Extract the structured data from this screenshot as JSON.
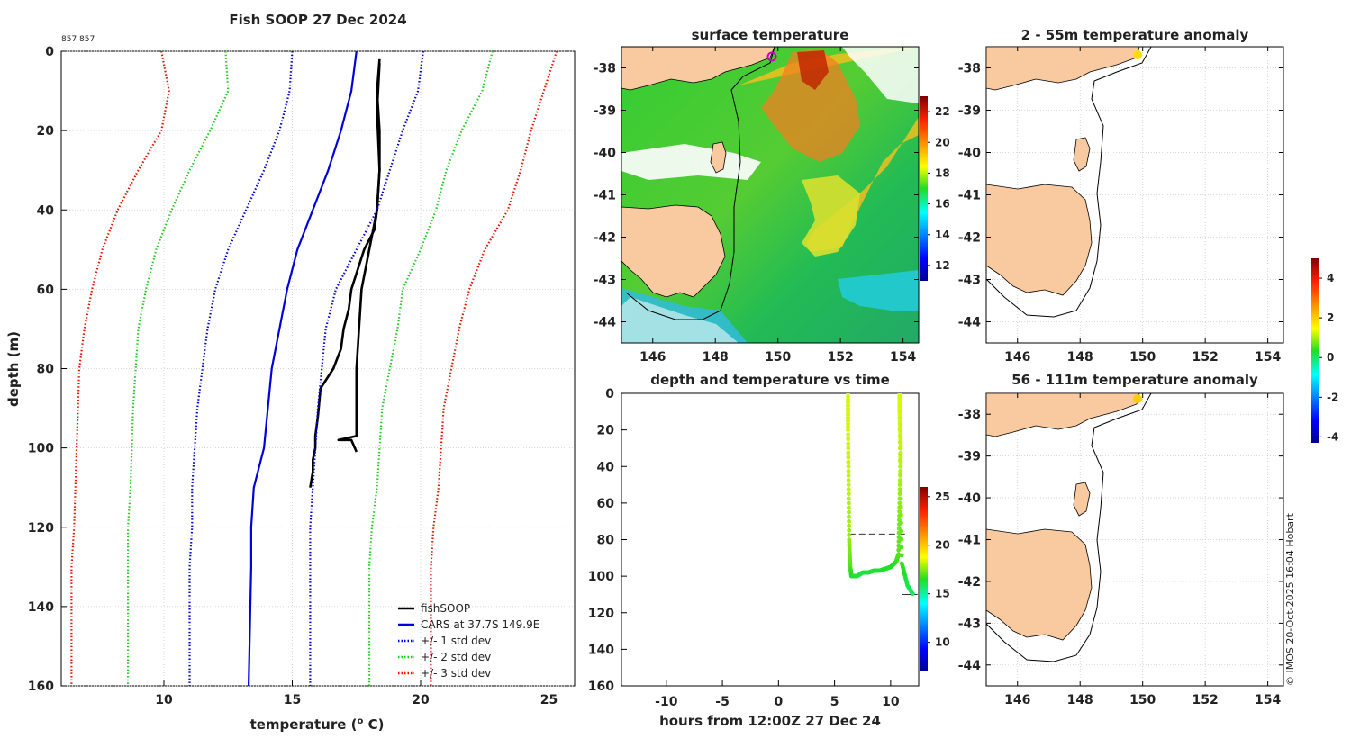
{
  "figure": {
    "main_title": "Fish SOOP 27 Dec 2024",
    "id_label": "857 857",
    "credit": "© IMOS 20-Oct-2025 16:04 Hobart"
  },
  "colors": {
    "fishsoop": "#000000",
    "cars": "#0000dd",
    "std1": "#0000dd",
    "std2": "#22cc22",
    "std3": "#ee1100",
    "land": "#f9c9a0",
    "grid": "#cccccc"
  },
  "chart_data": [
    {
      "id": "profile",
      "type": "line",
      "title": "Fish SOOP 27 Dec 2024",
      "xlabel": "temperature (",
      "xlabel_sup": "o",
      "xlabel_end": " C)",
      "ylabel": "depth (m)",
      "xlim": [
        6,
        26
      ],
      "ylim": [
        0,
        160
      ],
      "y_reversed": true,
      "xticks": [
        10,
        15,
        20,
        25
      ],
      "yticks": [
        0,
        20,
        40,
        60,
        80,
        100,
        120,
        140,
        160
      ],
      "legend_position": "bottom-right",
      "series": [
        {
          "name": "fishSOOP",
          "style": "solid",
          "color_key": "fishsoop",
          "x": [
            18.4,
            18.3,
            18.4,
            18.4,
            18.3,
            18.2,
            17.8,
            17.3,
            17.2,
            17.0,
            16.9,
            16.6,
            16.1,
            16.0,
            15.9,
            15.9,
            15.8,
            15.8,
            15.7
          ],
          "y": [
            2,
            10,
            20,
            30,
            40,
            45,
            50,
            60,
            65,
            70,
            75,
            80,
            85,
            92,
            97,
            100,
            103,
            106,
            110
          ]
        },
        {
          "name": "fishSOOP_up",
          "style": "solid",
          "color_key": "fishsoop",
          "hidden_label": true,
          "x": [
            17.5,
            17.3,
            16.8,
            17.5,
            17.5,
            17.5,
            17.6,
            17.7,
            18.0,
            18.3,
            18.4,
            18.3,
            18.4
          ],
          "y": [
            101,
            98,
            98,
            97,
            90,
            80,
            70,
            60,
            50,
            40,
            30,
            15,
            3
          ]
        },
        {
          "name": "CARS at 37.7S 149.9E",
          "style": "solid",
          "color_key": "cars",
          "x": [
            17.5,
            17.3,
            16.9,
            16.4,
            15.8,
            15.2,
            14.8,
            14.2,
            13.9,
            13.5,
            13.4,
            13.4,
            13.3
          ],
          "y": [
            0,
            10,
            20,
            30,
            40,
            50,
            60,
            80,
            100,
            110,
            120,
            130,
            160
          ]
        },
        {
          "name": "+/- 1 std dev",
          "style": "dotted",
          "color_key": "std1",
          "x": [
            15.0,
            14.9,
            14.5,
            13.9,
            13.2,
            12.5,
            12.0,
            11.7,
            11.3,
            11.1,
            11.1,
            11.0,
            11.0,
            11.0
          ],
          "y": [
            0,
            10,
            20,
            30,
            40,
            50,
            60,
            70,
            90,
            110,
            120,
            130,
            140,
            160
          ]
        },
        {
          "name": "+/- 1 std dev upper",
          "style": "dotted",
          "color_key": "std1",
          "hidden_label": true,
          "x": [
            20.1,
            19.9,
            19.3,
            18.8,
            18.3,
            17.5,
            16.7,
            16.3,
            16.0,
            15.8,
            15.7,
            15.7,
            15.7
          ],
          "y": [
            0,
            10,
            20,
            30,
            40,
            50,
            60,
            70,
            90,
            110,
            120,
            130,
            160
          ]
        },
        {
          "name": "+/- 2 std dev",
          "style": "dotted",
          "color_key": "std2",
          "x": [
            12.4,
            12.5,
            11.8,
            11.0,
            10.3,
            9.7,
            9.3,
            9.0,
            8.8,
            8.7,
            8.6,
            8.6,
            8.6
          ],
          "y": [
            0,
            10,
            20,
            30,
            40,
            50,
            60,
            70,
            90,
            110,
            120,
            130,
            160
          ]
        },
        {
          "name": "+/- 2 std dev upper",
          "style": "dotted",
          "color_key": "std2",
          "hidden_label": true,
          "x": [
            22.8,
            22.4,
            21.6,
            21.0,
            20.6,
            20.0,
            19.3,
            19.1,
            18.8,
            18.5,
            18.3,
            18.1,
            18.0,
            18.0
          ],
          "y": [
            0,
            10,
            20,
            30,
            40,
            50,
            60,
            70,
            80,
            90,
            110,
            120,
            130,
            160
          ]
        },
        {
          "name": "+/- 3 std dev",
          "style": "dotted",
          "color_key": "std3",
          "x": [
            9.9,
            10.2,
            9.9,
            9.0,
            8.2,
            7.6,
            7.2,
            6.9,
            6.7,
            6.6,
            6.5,
            6.4,
            6.4
          ],
          "y": [
            0,
            10,
            20,
            30,
            40,
            50,
            60,
            70,
            80,
            100,
            120,
            130,
            160
          ]
        },
        {
          "name": "+/- 3 std dev upper",
          "style": "dotted",
          "color_key": "std3",
          "hidden_label": true,
          "x": [
            25.3,
            24.8,
            24.3,
            23.9,
            23.4,
            22.5,
            21.9,
            21.5,
            21.2,
            20.9,
            20.7,
            20.5,
            20.4,
            20.4
          ],
          "y": [
            0,
            10,
            20,
            30,
            40,
            50,
            60,
            70,
            80,
            90,
            110,
            120,
            130,
            160
          ]
        }
      ],
      "legend": [
        {
          "label": "fishSOOP",
          "color_key": "fishsoop",
          "style": "solid"
        },
        {
          "label": "CARS at 37.7S 149.9E",
          "color_key": "cars",
          "style": "solid"
        },
        {
          "label": "+/- 1 std dev",
          "color_key": "std1",
          "style": "dotted"
        },
        {
          "label": "+/- 2 std dev",
          "color_key": "std2",
          "style": "dotted"
        },
        {
          "label": "+/- 3 std dev",
          "color_key": "std3",
          "style": "dotted"
        }
      ]
    },
    {
      "id": "sst_map",
      "type": "heatmap",
      "title": "surface temperature",
      "xlim": [
        145,
        154.5
      ],
      "ylim": [
        -44.5,
        -37.5
      ],
      "xticks": [
        146,
        148,
        150,
        152,
        154
      ],
      "yticks": [
        -38,
        -39,
        -40,
        -41,
        -42,
        -43,
        -44
      ],
      "colorbar": {
        "min": 11,
        "max": 23,
        "ticks": [
          12,
          14,
          16,
          18,
          20,
          22
        ]
      },
      "marker": {
        "lon": 149.9,
        "lat": -37.7,
        "color": "#cc00cc"
      }
    },
    {
      "id": "depth_time",
      "type": "scatter",
      "title": "depth and temperature vs time",
      "xlabel": "hours from 12:00Z 27 Dec 24",
      "xlim": [
        -14,
        12.5
      ],
      "ylim": [
        0,
        160
      ],
      "y_reversed": true,
      "xticks": [
        -10,
        -5,
        0,
        5,
        10
      ],
      "yticks": [
        0,
        20,
        40,
        60,
        80,
        100,
        120,
        140,
        160
      ],
      "colorbar": {
        "min": 7,
        "max": 26,
        "ticks": [
          10,
          15,
          20,
          25
        ]
      },
      "trace": {
        "hours": [
          6.2,
          6.2,
          6.25,
          6.3,
          6.4,
          6.5,
          7.0,
          7.5,
          8.0,
          8.5,
          9.0,
          9.5,
          10.0,
          10.5,
          10.7,
          10.8,
          10.9,
          10.8,
          10.8,
          10.85,
          11.0,
          11.5,
          12.0
        ],
        "depth": [
          0,
          20,
          50,
          80,
          95,
          100,
          100,
          98,
          98,
          97,
          97,
          96,
          95,
          92,
          88,
          60,
          30,
          10,
          0,
          40,
          93,
          105,
          110
        ],
        "temp": [
          18.3,
          18.3,
          18.1,
          17.6,
          17.0,
          16.4,
          16.2,
          16.2,
          16.2,
          16.3,
          16.3,
          16.3,
          16.4,
          16.6,
          17.0,
          17.6,
          18.2,
          18.4,
          18.4,
          18.0,
          16.8,
          16.0,
          15.8
        ]
      },
      "reference_lines": [
        {
          "depth": 77,
          "from_hour": 6.3,
          "to_hour": 11.6,
          "style": "dashed"
        },
        {
          "depth": 110,
          "from_hour": 11.0,
          "to_hour": 12.4,
          "style": "solid"
        }
      ]
    },
    {
      "id": "anom_shallow",
      "type": "scatter",
      "title": "2 - 55m temperature anomaly",
      "xlim": [
        145,
        154.5
      ],
      "ylim": [
        -44.5,
        -37.5
      ],
      "xticks": [
        146,
        148,
        150,
        152,
        154
      ],
      "yticks": [
        -38,
        -39,
        -40,
        -41,
        -42,
        -43,
        -44
      ],
      "points": [
        {
          "lon": 149.9,
          "lat": -37.7,
          "anomaly": 2.0
        }
      ]
    },
    {
      "id": "anom_deep",
      "type": "scatter",
      "title": "56 - 111m temperature anomaly",
      "xlim": [
        145,
        154.5
      ],
      "ylim": [
        -44.5,
        -37.5
      ],
      "xticks": [
        146,
        148,
        150,
        152,
        154
      ],
      "yticks": [
        -38,
        -39,
        -40,
        -41,
        -42,
        -43,
        -44
      ],
      "points": [
        {
          "lon": 149.9,
          "lat": -37.7,
          "anomaly": 1.8
        }
      ]
    },
    {
      "id": "anomaly_colorbar",
      "type": "heatmap",
      "colorbar": {
        "min": -4.3,
        "max": 5.0,
        "ticks": [
          -4,
          -2,
          0,
          2,
          4
        ]
      }
    }
  ]
}
